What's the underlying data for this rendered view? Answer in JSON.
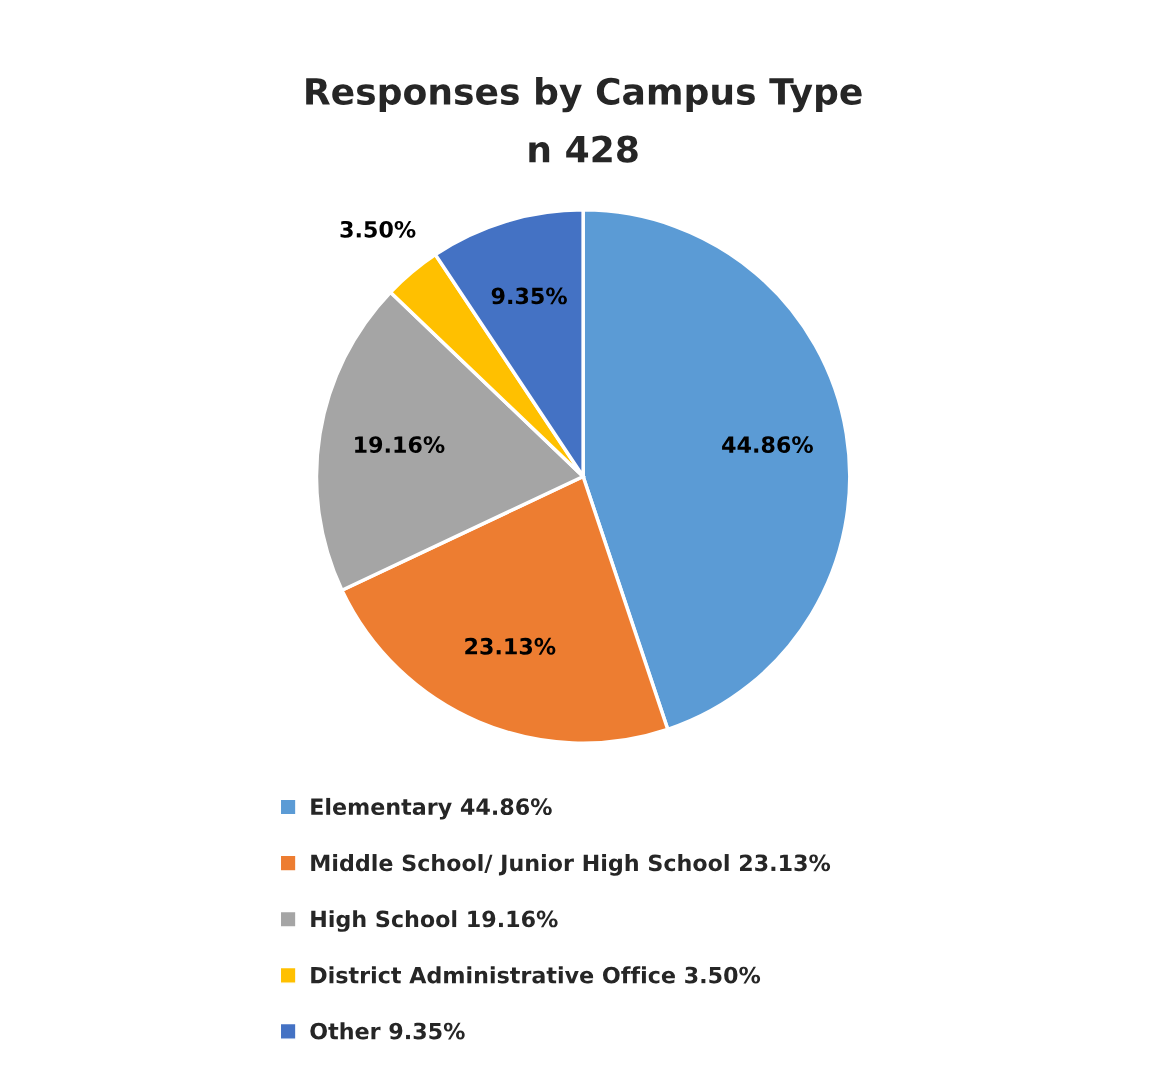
{
  "chart_data": {
    "type": "pie",
    "title": "Responses by Campus Type",
    "subtitle": "n 428",
    "categories": [
      "Elementary",
      "Middle School/ Junior High School",
      "High School",
      "District Administrative Office",
      "Other"
    ],
    "values": [
      44.86,
      23.13,
      19.16,
      3.5,
      9.35
    ],
    "colors": [
      "#5b9bd5",
      "#ed7d31",
      "#a5a5a5",
      "#ffc000",
      "#4472c4"
    ],
    "value_labels": [
      "44.86%",
      "23.13%",
      "19.16%",
      "3.50%",
      "9.35%"
    ],
    "legend": "bottom"
  }
}
